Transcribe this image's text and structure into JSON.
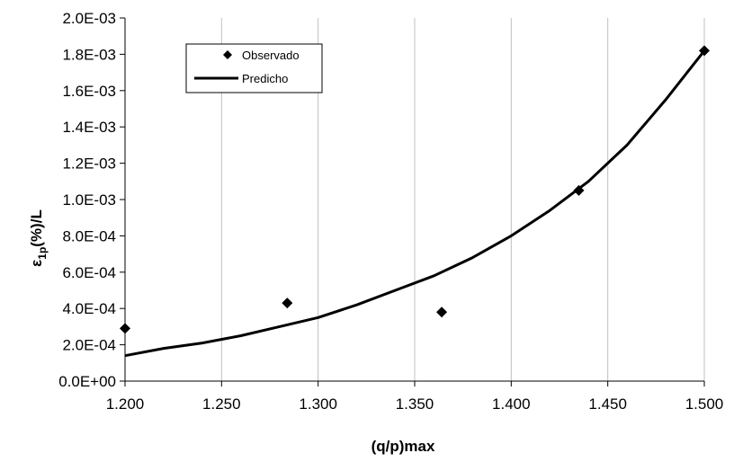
{
  "chart_data": {
    "type": "scatter",
    "title": "",
    "xlabel": "(q/p)max",
    "ylabel_main": "ε",
    "ylabel_sub": "1p",
    "ylabel_rest": "(%)/L",
    "xlim": [
      1.2,
      1.5
    ],
    "ylim": [
      0,
      0.002
    ],
    "x_ticks": [
      1.2,
      1.25,
      1.3,
      1.35,
      1.4,
      1.45,
      1.5
    ],
    "x_tick_labels": [
      "1.200",
      "1.250",
      "1.300",
      "1.350",
      "1.400",
      "1.450",
      "1.500"
    ],
    "y_ticks": [
      0,
      0.0002,
      0.0004,
      0.0006,
      0.0008,
      0.001,
      0.0012,
      0.0014,
      0.0016,
      0.0018,
      0.002
    ],
    "y_tick_labels": [
      "0.0E+00",
      "2.0E-04",
      "4.0E-04",
      "6.0E-04",
      "8.0E-04",
      "1.0E-03",
      "1.2E-03",
      "1.4E-03",
      "1.6E-03",
      "1.8E-03",
      "2.0E-03"
    ],
    "grid": "vertical",
    "legend_position": "top-left",
    "series": [
      {
        "name": "Observado",
        "style": "markers",
        "marker": "diamond",
        "color": "#000000",
        "x": [
          1.2,
          1.284,
          1.364,
          1.435,
          1.5
        ],
        "y": [
          0.00029,
          0.00043,
          0.00038,
          0.00105,
          0.00182
        ]
      },
      {
        "name": "Predicho",
        "style": "line",
        "color": "#000000",
        "x": [
          1.2,
          1.22,
          1.24,
          1.26,
          1.28,
          1.3,
          1.32,
          1.34,
          1.36,
          1.38,
          1.4,
          1.42,
          1.44,
          1.46,
          1.48,
          1.5
        ],
        "y": [
          0.00014,
          0.00018,
          0.00021,
          0.00025,
          0.0003,
          0.00035,
          0.00042,
          0.0005,
          0.00058,
          0.00068,
          0.0008,
          0.00094,
          0.0011,
          0.0013,
          0.00155,
          0.00182
        ]
      }
    ]
  }
}
